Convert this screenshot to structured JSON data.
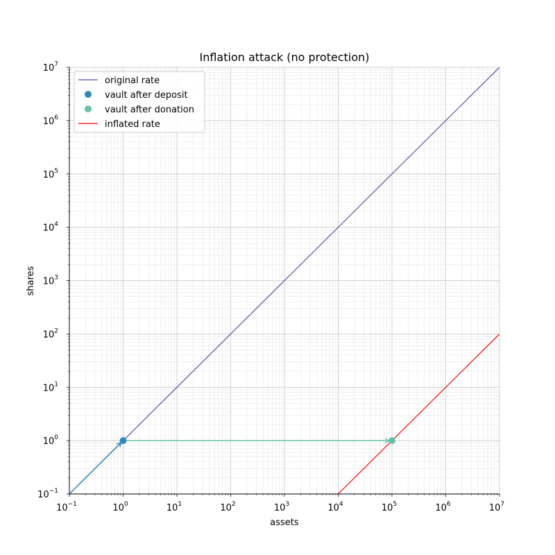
{
  "chart_data": {
    "type": "line",
    "title": "Inflation attack (no protection)",
    "xlabel": "assets",
    "ylabel": "shares",
    "xscale": "log",
    "yscale": "log",
    "xlim": [
      0.1,
      10000000
    ],
    "ylim": [
      0.1,
      10000000
    ],
    "grid": true,
    "legend_placement": "top-left",
    "x_tick_exponents": [
      -1,
      0,
      1,
      2,
      3,
      4,
      5,
      6,
      7
    ],
    "y_tick_exponents": [
      -1,
      0,
      1,
      2,
      3,
      4,
      5,
      6,
      7
    ],
    "series": [
      {
        "name": "original rate",
        "kind": "line",
        "color": "#5e4fa2",
        "x": [
          0.1,
          10000000
        ],
        "y": [
          0.1,
          10000000
        ]
      },
      {
        "name": "vault after deposit",
        "kind": "scatter",
        "color": "#3288bd",
        "x": [
          1
        ],
        "y": [
          1
        ]
      },
      {
        "name": "vault after donation",
        "kind": "scatter",
        "color": "#66c2a5",
        "x": [
          100000
        ],
        "y": [
          1
        ]
      },
      {
        "name": "inflated rate",
        "kind": "line",
        "color": "#ff0000",
        "x": [
          10000,
          10000000
        ],
        "y": [
          0.1,
          100
        ]
      }
    ],
    "arrows": [
      {
        "from": [
          0.1,
          0.1
        ],
        "to": [
          1,
          1
        ],
        "color": "#3288bd"
      },
      {
        "from": [
          1,
          1
        ],
        "to": [
          100000,
          1
        ],
        "color": "#66c2a5"
      }
    ]
  }
}
